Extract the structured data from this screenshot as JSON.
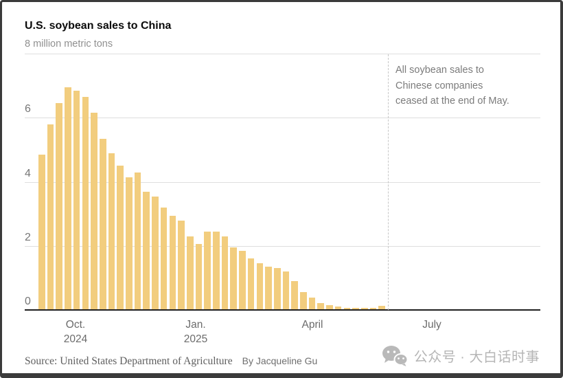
{
  "header": {
    "title": "U.S. soybean sales to China",
    "subtitle": "8 million metric tons"
  },
  "annotation": {
    "lines": [
      "All soybean sales to",
      "Chinese companies",
      "ceased at the end of May."
    ]
  },
  "footer": {
    "source": "Source: United States Department of Agriculture",
    "byline": "By Jacqueline Gu",
    "watermark": "公众号 · 大白话时事"
  },
  "colors": {
    "bar": "#f2cd7e",
    "gridline": "#dedede",
    "baseline": "#1f1f1f",
    "dashed_line": "#c6c6c6",
    "frame": "#3b3b3b",
    "muted_text": "#767676",
    "watermark_gray": "#b6b6b6"
  },
  "chart_data": {
    "type": "bar",
    "title": "U.S. soybean sales to China",
    "ylabel": "million metric tons",
    "ylim": [
      0,
      8
    ],
    "yticks": [
      0,
      2,
      4,
      6
    ],
    "grid": true,
    "legend": false,
    "x_axis_labels": [
      {
        "label": "Oct.",
        "year": "2024"
      },
      {
        "label": "Jan.",
        "year": "2025"
      },
      {
        "label": "April",
        "year": ""
      },
      {
        "label": "July",
        "year": ""
      }
    ],
    "annotation": "All soybean sales to Chinese companies ceased at the end of May.",
    "values": [
      4.85,
      5.8,
      6.45,
      6.95,
      6.85,
      6.65,
      6.15,
      5.35,
      4.9,
      4.5,
      4.15,
      4.3,
      3.7,
      3.55,
      3.2,
      2.95,
      2.8,
      2.3,
      2.05,
      2.45,
      2.45,
      2.3,
      1.95,
      1.85,
      1.6,
      1.45,
      1.35,
      1.3,
      1.2,
      0.9,
      0.55,
      0.38,
      0.22,
      0.15,
      0.1,
      0.07,
      0.06,
      0.06,
      0.07,
      0.12
    ]
  }
}
